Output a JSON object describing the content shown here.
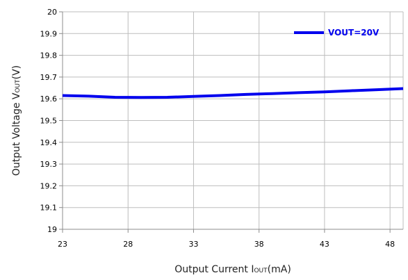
{
  "chart_data": {
    "type": "line",
    "title": "",
    "xlabel": "Output Current Iₒᵤₜ(mA)",
    "ylabel": "Output Voltage Vₒᵤₜ(V)",
    "xlabel_parts": {
      "main": "Output Current I",
      "sub": "OUT",
      "tail": "(mA)"
    },
    "ylabel_parts": {
      "main": "Output Voltage V",
      "sub": "OUT",
      "tail": "(V)"
    },
    "xlim": [
      23,
      49
    ],
    "ylim": [
      19,
      20
    ],
    "x_ticks": [
      23,
      28,
      33,
      38,
      43,
      48
    ],
    "x_tick_labels": [
      "23",
      "28",
      "33",
      "38",
      "43",
      "48"
    ],
    "y_ticks": [
      19,
      19.1,
      19.2,
      19.3,
      19.4,
      19.5,
      19.6,
      19.7,
      19.8,
      19.9,
      20
    ],
    "y_tick_labels": [
      "19",
      "19.1",
      "19.2",
      "19.3",
      "19.4",
      "19.5",
      "19.6",
      "19.7",
      "19.8",
      "19.9",
      "20"
    ],
    "grid": true,
    "legend_position": "top-right",
    "series": [
      {
        "name": "VOUT=20V",
        "color": "#0000ee",
        "x": [
          23,
          25,
          27,
          29,
          31,
          33,
          35,
          37,
          39,
          41,
          43,
          45,
          47,
          49
        ],
        "y": [
          19.615,
          19.612,
          19.607,
          19.606,
          19.607,
          19.611,
          19.615,
          19.62,
          19.624,
          19.628,
          19.632,
          19.637,
          19.642,
          19.647
        ]
      }
    ]
  }
}
